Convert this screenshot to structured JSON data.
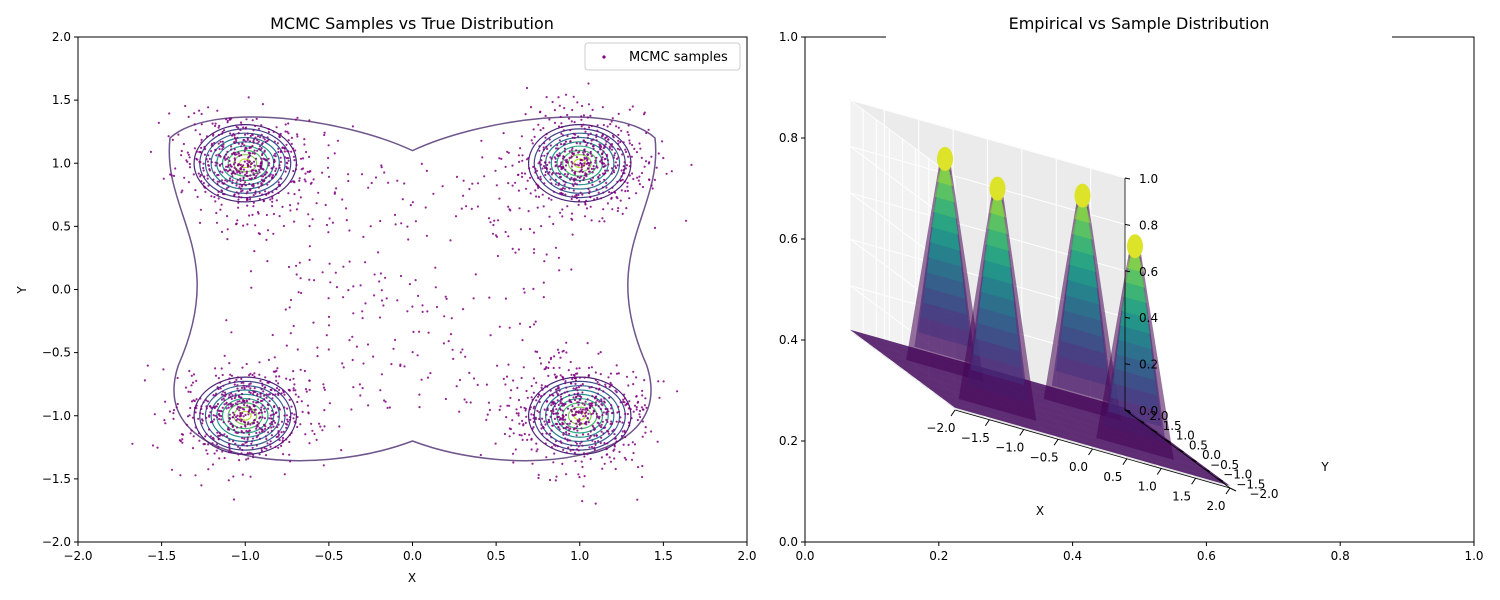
{
  "chart_data": [
    {
      "type": "scatter",
      "title": "MCMC Samples vs True Distribution",
      "xlabel": "X",
      "ylabel": "Y",
      "xlim": [
        -2.0,
        2.0
      ],
      "ylim": [
        -2.0,
        2.0
      ],
      "xticks": [
        "−2.0",
        "−1.5",
        "−1.0",
        "−0.5",
        "0.0",
        "0.5",
        "1.0",
        "1.5",
        "2.0"
      ],
      "yticks": [
        "−2.0",
        "−1.5",
        "−1.0",
        "−0.5",
        "0.0",
        "0.5",
        "1.0",
        "1.5",
        "2.0"
      ],
      "grid": false,
      "legend": {
        "placement": "top-right",
        "entries": [
          "MCMC samples"
        ]
      },
      "series": [
        {
          "name": "MCMC samples",
          "color": "#800080",
          "modes": [
            [
              -1.0,
              1.0
            ],
            [
              1.0,
              1.0
            ],
            [
              -1.0,
              -1.0
            ],
            [
              1.0,
              -1.0
            ]
          ],
          "spread": 0.2
        }
      ],
      "overlay": {
        "kind": "contour",
        "colormap": "viridis",
        "centers": [
          [
            -1.0,
            1.0
          ],
          [
            1.0,
            1.0
          ],
          [
            -1.0,
            -1.0
          ],
          [
            1.0,
            -1.0
          ]
        ]
      }
    },
    {
      "type": "surface",
      "title": "Empirical vs Sample Distribution",
      "outer_xticks": [
        "0.0",
        "0.2",
        "0.4",
        "0.6",
        "0.8",
        "1.0"
      ],
      "outer_yticks": [
        "0.0",
        "0.2",
        "0.4",
        "0.6",
        "0.8",
        "1.0"
      ],
      "xlabel": "X",
      "ylabel": "Y",
      "xticks": [
        "−2.0",
        "−1.5",
        "−1.0",
        "−0.5",
        "0.0",
        "0.5",
        "1.0",
        "1.5",
        "2.0"
      ],
      "yticks": [
        "−2.0",
        "−1.5",
        "−1.0",
        "−0.5",
        "0.0",
        "0.5",
        "1.0",
        "1.5",
        "2.0"
      ],
      "zticks": [
        "0.0",
        "0.2",
        "0.4",
        "0.6",
        "0.8",
        "1.0"
      ],
      "xlim": [
        -2.0,
        2.0
      ],
      "ylim": [
        -2.0,
        2.0
      ],
      "zlim": [
        0.0,
        1.0
      ],
      "colormap": "viridis",
      "peaks": [
        {
          "x": -1.0,
          "y": 1.0,
          "z": 0.94
        },
        {
          "x": 1.0,
          "y": 1.0,
          "z": 0.95
        },
        {
          "x": -1.0,
          "y": -1.0,
          "z": 0.98
        },
        {
          "x": 1.0,
          "y": -1.0,
          "z": 0.9
        }
      ]
    }
  ]
}
